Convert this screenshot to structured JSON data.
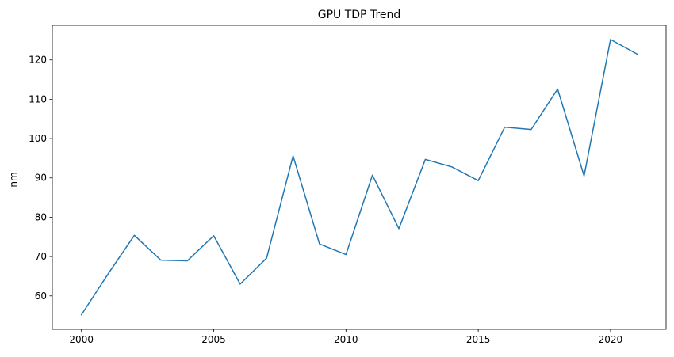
{
  "chart_data": {
    "type": "line",
    "title": "GPU TDP Trend",
    "xlabel": "",
    "ylabel": "nm",
    "xlim": [
      1998.9,
      2022.1
    ],
    "ylim": [
      51.5,
      128.8
    ],
    "x_ticks": [
      2000,
      2005,
      2010,
      2015,
      2020
    ],
    "y_ticks": [
      60,
      70,
      80,
      90,
      100,
      110,
      120
    ],
    "grid": false,
    "legend": "none",
    "series": [
      {
        "color": "#1f77b4",
        "x": [
          2000,
          2001,
          2002,
          2003,
          2004,
          2005,
          2006,
          2007,
          2008,
          2009,
          2010,
          2011,
          2012,
          2013,
          2014,
          2015,
          2016,
          2017,
          2018,
          2019,
          2020,
          2021
        ],
        "y": [
          55.2,
          65.5,
          75.4,
          69.1,
          68.9,
          75.3,
          63.0,
          69.6,
          95.6,
          73.2,
          70.5,
          90.7,
          77.1,
          94.7,
          92.8,
          89.3,
          102.9,
          102.3,
          112.6,
          90.5,
          125.2,
          121.5
        ]
      }
    ]
  }
}
